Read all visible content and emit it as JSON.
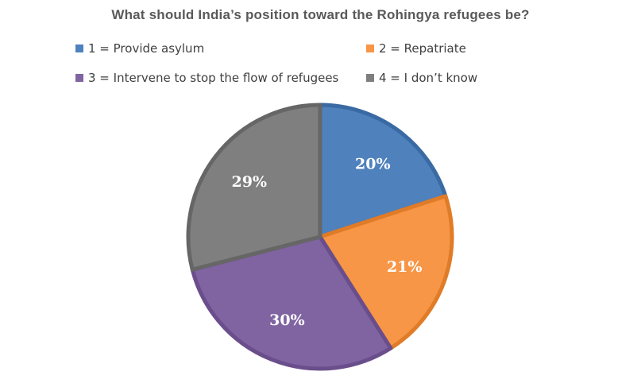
{
  "chart_data": {
    "type": "pie",
    "title": "What should India’s position toward the Rohingya refugees be?",
    "legend_position": "top",
    "slices": [
      {
        "name": "1 = Provide asylum",
        "value": 20,
        "label": "20%",
        "color": "#4F81BD",
        "border": "#3A6AA3"
      },
      {
        "name": "2 = Repatriate",
        "value": 21,
        "label": "21%",
        "color": "#F79646",
        "border": "#E07B27"
      },
      {
        "name": "3 = Intervene to stop the flow of refugees",
        "value": 30,
        "label": "30%",
        "color": "#8064A2",
        "border": "#6A4E8C"
      },
      {
        "name": "4 = I don’t know",
        "value": 29,
        "label": "29%",
        "color": "#7F7F7F",
        "border": "#666666"
      }
    ]
  }
}
